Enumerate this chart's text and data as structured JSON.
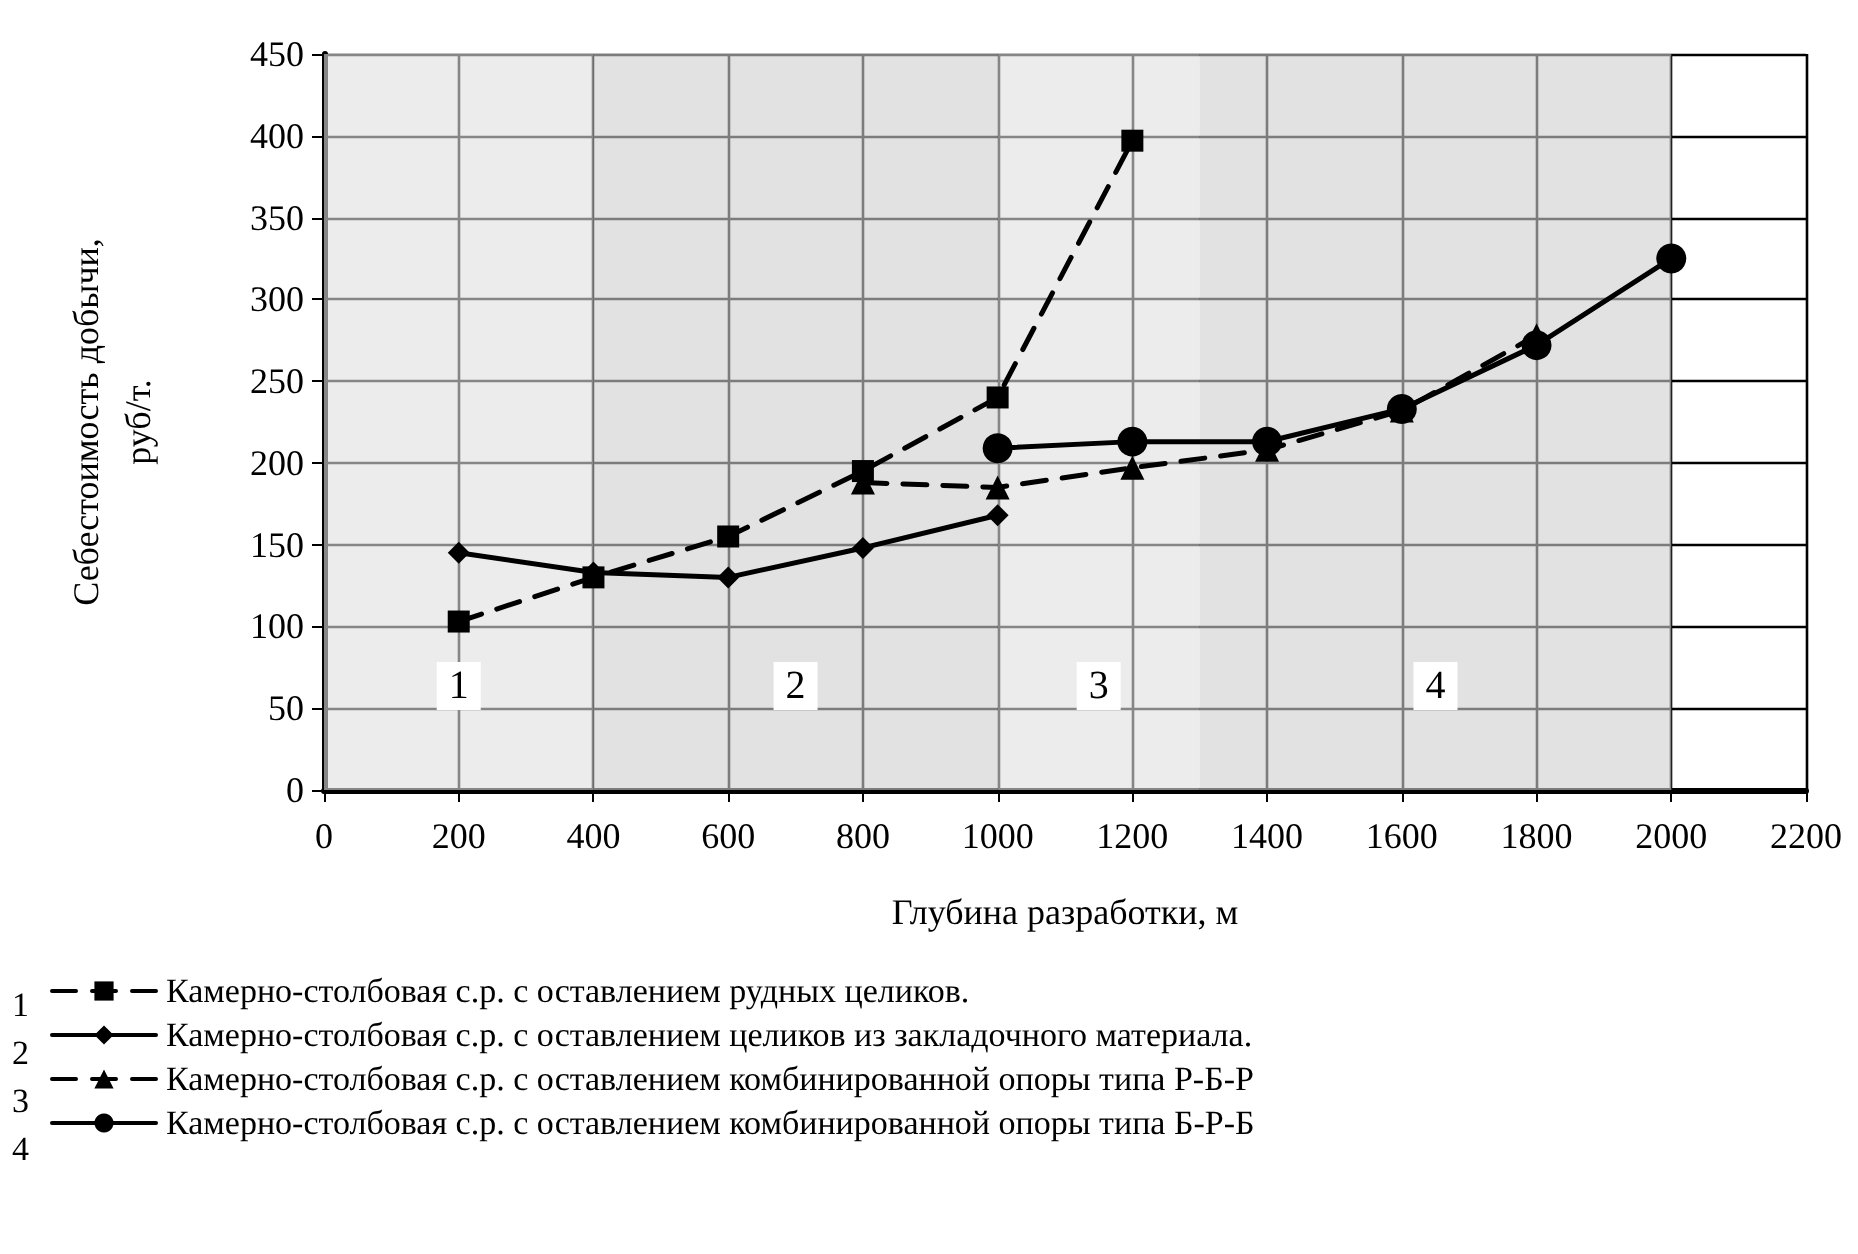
{
  "chart_data": {
    "type": "line",
    "xlabel": "Глубина разработки, м",
    "ylabel": "Себестоимость добычи,\nруб/т.",
    "xlim": [
      0,
      2200
    ],
    "xticks": [
      0,
      200,
      400,
      600,
      800,
      1000,
      1200,
      1400,
      1600,
      1800,
      2000,
      2200
    ],
    "ylim": [
      0,
      450
    ],
    "yticks": [
      0,
      50,
      100,
      150,
      200,
      250,
      300,
      350,
      400,
      450
    ],
    "grid": true,
    "legend": "bottom left",
    "series": [
      {
        "name": "Камерно-столбовая с.р. с оставлением рудных целиков.",
        "color": "#000000",
        "marker": "square",
        "line_style": "dashed",
        "x": [
          200,
          400,
          600,
          800,
          1000,
          1200
        ],
        "values": [
          103,
          130,
          155,
          195,
          240,
          397
        ]
      },
      {
        "name": "Камерно-столбовая с.р. с оставлением целиков из закладочного материала.",
        "color": "#000000",
        "marker": "diamond",
        "line_style": "solid",
        "x": [
          200,
          400,
          600,
          800,
          1000
        ],
        "values": [
          145,
          133,
          130,
          148,
          168
        ]
      },
      {
        "name": "Камерно-столбовая с.р. с оставлением комбинированной опоры типа Р-Б-Р",
        "color": "#000000",
        "marker": "triangle",
        "line_style": "dashed",
        "x": [
          800,
          1000,
          1200,
          1400,
          1600,
          1800
        ],
        "values": [
          188,
          185,
          197,
          208,
          232,
          278
        ]
      },
      {
        "name": "Камерно-столбовая с.р. с оставлением комбинированной опоры типа Б-Р-Б",
        "color": "#000000",
        "marker": "circle",
        "line_style": "solid",
        "x": [
          1000,
          1200,
          1400,
          1600,
          1800,
          2000
        ],
        "values": [
          209,
          213,
          213,
          233,
          272,
          325
        ]
      }
    ],
    "bands": [
      {
        "axis": "x",
        "from": 0,
        "to": 400,
        "label": "1",
        "color": "#e0e0e0"
      },
      {
        "axis": "x",
        "from": 400,
        "to": 1000,
        "label": "2",
        "color": "#cfcfcf"
      },
      {
        "axis": "x",
        "from": 1000,
        "to": 1300,
        "label": "3",
        "color": "#e0e0e0"
      },
      {
        "axis": "x",
        "from": 1300,
        "to": 2000,
        "label": "4",
        "color": "#cfcfcf"
      }
    ],
    "annotations": [
      "1",
      "2",
      "3",
      "4"
    ]
  }
}
